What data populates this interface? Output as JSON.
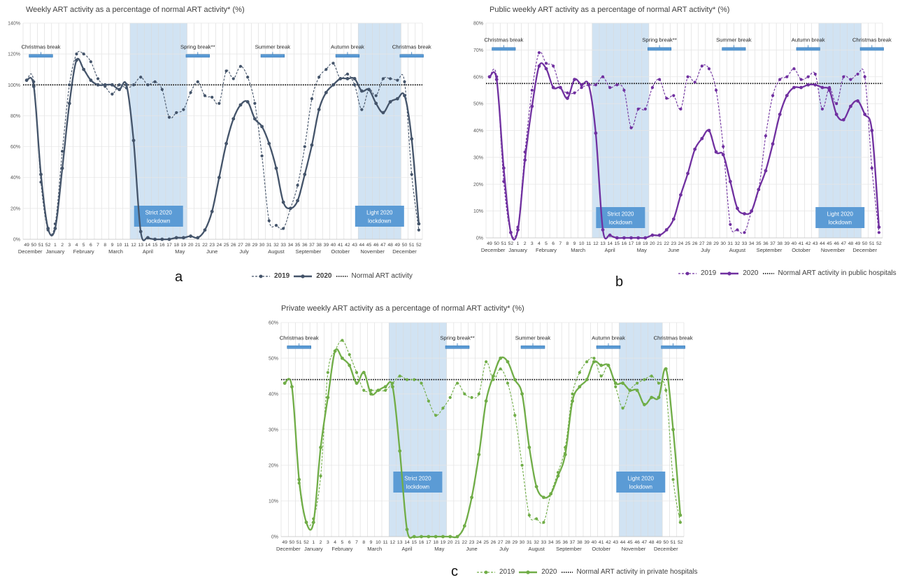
{
  "chart_data": [
    {
      "type": "line",
      "panel": "a",
      "title": "Weekly ART activity as a percentage of normal ART activity* (%)",
      "weeks": [
        "49",
        "50",
        "51",
        "52",
        "1",
        "2",
        "3",
        "4",
        "5",
        "6",
        "7",
        "8",
        "9",
        "10",
        "11",
        "12",
        "13",
        "14",
        "15",
        "16",
        "17",
        "18",
        "19",
        "20",
        "21",
        "22",
        "23",
        "24",
        "25",
        "26",
        "27",
        "28",
        "29",
        "30",
        "31",
        "32",
        "33",
        "34",
        "35",
        "36",
        "37",
        "38",
        "39",
        "40",
        "41",
        "42",
        "43",
        "44",
        "45",
        "46",
        "47",
        "48",
        "49",
        "50",
        "51",
        "52"
      ],
      "months": [
        {
          "label": "December",
          "center": 1.5
        },
        {
          "label": "January",
          "center": 5
        },
        {
          "label": "February",
          "center": 9
        },
        {
          "label": "March",
          "center": 13.5
        },
        {
          "label": "April",
          "center": 18
        },
        {
          "label": "May",
          "center": 22.5
        },
        {
          "label": "June",
          "center": 27
        },
        {
          "label": "July",
          "center": 31.5
        },
        {
          "label": "August",
          "center": 36
        },
        {
          "label": "September",
          "center": 40.5
        },
        {
          "label": "October",
          "center": 45
        },
        {
          "label": "November",
          "center": 49.5
        },
        {
          "label": "December",
          "center": 54
        }
      ],
      "yticks": [
        0,
        20,
        40,
        60,
        80,
        100,
        120,
        140
      ],
      "ytick_labels": [
        "0%",
        "20%",
        "40%",
        "60%",
        "80%",
        "100%",
        "120%",
        "140%"
      ],
      "ylim": [
        0,
        140
      ],
      "normal_value": 100,
      "shaded": [
        {
          "from": 16,
          "to": 23,
          "label_line1": "Strict 2020",
          "label_line2": "lockdown"
        },
        {
          "from": 48,
          "to": 53,
          "label_line1": "Light 2020",
          "label_line2": "lockdown"
        }
      ],
      "breaks": [
        {
          "label": "Christmas break",
          "at": 3
        },
        {
          "label": "Spring break**",
          "at": 25
        },
        {
          "label": "Summer break",
          "at": 35.5
        },
        {
          "label": "Autumn break",
          "at": 46
        },
        {
          "label": "Christmas break",
          "at": 55
        }
      ],
      "break_level": 119,
      "series": [
        {
          "name": "2019",
          "style": "dashed",
          "values": [
            103,
            102,
            37,
            6,
            10,
            57,
            100,
            120,
            120,
            115,
            104,
            99,
            94,
            100,
            98,
            100,
            105,
            100,
            102,
            97,
            79,
            82,
            84,
            95,
            102,
            93,
            92,
            88,
            109,
            104,
            112,
            105,
            88,
            54,
            12,
            9,
            7,
            20,
            35,
            60,
            91,
            105,
            110,
            114,
            104,
            107,
            100,
            84,
            97,
            93,
            104,
            104,
            103,
            102,
            42,
            6
          ]
        },
        {
          "name": "2020",
          "style": "solid",
          "values": [
            103,
            99,
            42,
            7,
            7,
            46,
            88,
            116,
            110,
            103,
            100,
            100,
            100,
            97,
            100,
            64,
            5,
            1,
            0,
            0,
            0,
            1,
            1,
            2,
            1,
            6,
            18,
            40,
            62,
            78,
            87,
            89,
            78,
            73,
            62,
            46,
            24,
            20,
            25,
            42,
            61,
            84,
            95,
            100,
            104,
            104,
            104,
            96,
            97,
            88,
            82,
            89,
            91,
            93,
            65,
            10
          ]
        }
      ],
      "colors": {
        "line": "#44546A",
        "shade": "#BDD7EE",
        "box": "#5B9BD5",
        "bracket": "#5B9BD5"
      },
      "legend": {
        "s2019": "2019",
        "s2020": "2020",
        "normal": "Normal ART activity"
      },
      "letter": "a"
    },
    {
      "type": "line",
      "panel": "b",
      "title": "Public weekly ART activity as a percentage of normal ART activity* (%)",
      "weeks": [
        "49",
        "50",
        "51",
        "52",
        "1",
        "2",
        "3",
        "4",
        "5",
        "6",
        "7",
        "8",
        "9",
        "10",
        "11",
        "12",
        "13",
        "14",
        "15",
        "16",
        "17",
        "18",
        "19",
        "20",
        "21",
        "22",
        "23",
        "24",
        "25",
        "26",
        "27",
        "28",
        "29",
        "30",
        "31",
        "32",
        "33",
        "34",
        "35",
        "36",
        "37",
        "38",
        "39",
        "40",
        "41",
        "42",
        "43",
        "44",
        "45",
        "46",
        "47",
        "48",
        "49",
        "50",
        "51",
        "52"
      ],
      "months": [
        {
          "label": "December",
          "center": 1.5
        },
        {
          "label": "January",
          "center": 5
        },
        {
          "label": "February",
          "center": 9
        },
        {
          "label": "March",
          "center": 13.5
        },
        {
          "label": "April",
          "center": 18
        },
        {
          "label": "May",
          "center": 22.5
        },
        {
          "label": "June",
          "center": 27
        },
        {
          "label": "July",
          "center": 31.5
        },
        {
          "label": "August",
          "center": 36
        },
        {
          "label": "September",
          "center": 40.5
        },
        {
          "label": "October",
          "center": 45
        },
        {
          "label": "November",
          "center": 49.5
        },
        {
          "label": "December",
          "center": 54
        }
      ],
      "yticks": [
        0,
        10,
        20,
        30,
        40,
        50,
        60,
        70,
        80
      ],
      "ytick_labels": [
        "0%",
        "10%",
        "20%",
        "30%",
        "40%",
        "50%",
        "60%",
        "70%",
        "80%"
      ],
      "ylim": [
        0,
        80
      ],
      "normal_value": 57.5,
      "shaded": [
        {
          "from": 16,
          "to": 23,
          "label_line1": "Strict 2020",
          "label_line2": "lockdown"
        },
        {
          "from": 48,
          "to": 53,
          "label_line1": "Light 2020",
          "label_line2": "lockdown"
        }
      ],
      "breaks": [
        {
          "label": "Christmas break",
          "at": 3
        },
        {
          "label": "Spring break**",
          "at": 25
        },
        {
          "label": "Summer break",
          "at": 35.5
        },
        {
          "label": "Autumn break",
          "at": 46
        },
        {
          "label": "Christmas break",
          "at": 55
        }
      ],
      "break_level": 70.5,
      "series": [
        {
          "name": "2019",
          "style": "dashed",
          "values": [
            60,
            60,
            21,
            2,
            4,
            32,
            55,
            69,
            65,
            64,
            56,
            54,
            54,
            56,
            57,
            57,
            60,
            56,
            57,
            55,
            41,
            48,
            48,
            56,
            59,
            52,
            53,
            48,
            60,
            58,
            64,
            63,
            55,
            34,
            5,
            3,
            2,
            10,
            18,
            38,
            53,
            59,
            60,
            63,
            59,
            60,
            61,
            48,
            56,
            50,
            60,
            59,
            61,
            60,
            26,
            2
          ]
        },
        {
          "name": "2020",
          "style": "solid",
          "values": [
            60,
            59,
            26,
            2,
            3,
            29,
            49,
            64,
            63,
            56,
            56,
            52,
            59,
            57,
            57,
            39,
            3,
            1,
            0,
            0,
            0,
            0,
            0,
            1,
            1,
            3,
            7,
            16,
            24,
            33,
            37,
            40,
            32,
            31,
            21,
            11,
            9,
            10,
            18,
            25,
            35,
            46,
            53,
            56,
            56,
            57,
            57,
            56,
            55,
            46,
            44,
            49,
            51,
            46,
            40,
            4
          ]
        }
      ],
      "colors": {
        "line": "#7030A0",
        "shade": "#BDD7EE",
        "box": "#5B9BD5",
        "bracket": "#5B9BD5"
      },
      "legend": {
        "s2019": "2019",
        "s2020": "2020",
        "normal": "Normal ART activity in public hospitals"
      },
      "letter": "b"
    },
    {
      "type": "line",
      "panel": "c",
      "title": "Private weekly ART activity as a percentage of normal ART activity* (%)",
      "weeks": [
        "49",
        "50",
        "51",
        "52",
        "1",
        "2",
        "3",
        "4",
        "5",
        "6",
        "7",
        "8",
        "9",
        "10",
        "11",
        "12",
        "13",
        "14",
        "15",
        "16",
        "17",
        "18",
        "19",
        "20",
        "21",
        "22",
        "23",
        "24",
        "25",
        "26",
        "27",
        "28",
        "29",
        "30",
        "31",
        "32",
        "33",
        "34",
        "35",
        "36",
        "37",
        "38",
        "39",
        "40",
        "41",
        "42",
        "43",
        "44",
        "45",
        "46",
        "47",
        "48",
        "49",
        "50",
        "51",
        "52"
      ],
      "months": [
        {
          "label": "December",
          "center": 1.5
        },
        {
          "label": "January",
          "center": 5
        },
        {
          "label": "February",
          "center": 9
        },
        {
          "label": "March",
          "center": 13.5
        },
        {
          "label": "April",
          "center": 18
        },
        {
          "label": "May",
          "center": 22.5
        },
        {
          "label": "June",
          "center": 27
        },
        {
          "label": "July",
          "center": 31.5
        },
        {
          "label": "August",
          "center": 36
        },
        {
          "label": "September",
          "center": 40.5
        },
        {
          "label": "October",
          "center": 45
        },
        {
          "label": "November",
          "center": 49.5
        },
        {
          "label": "December",
          "center": 54
        }
      ],
      "yticks": [
        0,
        10,
        20,
        30,
        40,
        50,
        60
      ],
      "ytick_labels": [
        "0%",
        "10%",
        "20%",
        "30%",
        "40%",
        "50%",
        "60%"
      ],
      "ylim": [
        0,
        60
      ],
      "normal_value": 44,
      "shaded": [
        {
          "from": 16,
          "to": 23,
          "label_line1": "Strict 2020",
          "label_line2": "lockdown"
        },
        {
          "from": 48,
          "to": 53,
          "label_line1": "Light 2020",
          "label_line2": "lockdown"
        }
      ],
      "breaks": [
        {
          "label": "Christmas break",
          "at": 3
        },
        {
          "label": "Spring break**",
          "at": 25
        },
        {
          "label": "Summer break",
          "at": 35.5
        },
        {
          "label": "Autumn break",
          "at": 46
        },
        {
          "label": "Christmas break",
          "at": 55
        }
      ],
      "break_level": 53.2,
      "series": [
        {
          "name": "2019",
          "style": "dashed",
          "values": [
            43,
            42,
            15,
            4,
            5,
            17,
            46,
            52,
            55,
            51,
            46,
            41,
            41,
            41,
            41,
            43,
            45,
            44,
            44,
            43,
            38,
            34,
            36,
            39,
            43,
            40,
            39,
            40,
            49,
            44,
            47,
            43,
            34,
            20,
            6,
            5,
            4,
            12,
            18,
            25,
            40,
            46,
            49,
            50,
            45,
            48,
            42,
            36,
            41,
            43,
            44,
            45,
            43,
            41,
            16,
            4
          ]
        },
        {
          "name": "2020",
          "style": "solid",
          "values": [
            43,
            42,
            16,
            4,
            4,
            25,
            39,
            52,
            50,
            48,
            43,
            46,
            40,
            41,
            42,
            42,
            24,
            2,
            0,
            0,
            0,
            0,
            0,
            0,
            0,
            3,
            11,
            23,
            38,
            45,
            50,
            49,
            44,
            40,
            25,
            14,
            11,
            12,
            17,
            23,
            38,
            42,
            44,
            49,
            48,
            48,
            43,
            43,
            41,
            41,
            37,
            39,
            39,
            47,
            30,
            6
          ]
        }
      ],
      "colors": {
        "line": "#70AD47",
        "shade": "#BDD7EE",
        "box": "#5B9BD5",
        "bracket": "#5B9BD5"
      },
      "legend": {
        "s2019": "2019",
        "s2020": "2020",
        "normal": "Normal ART activity in private hospitals"
      },
      "letter": "c"
    }
  ]
}
